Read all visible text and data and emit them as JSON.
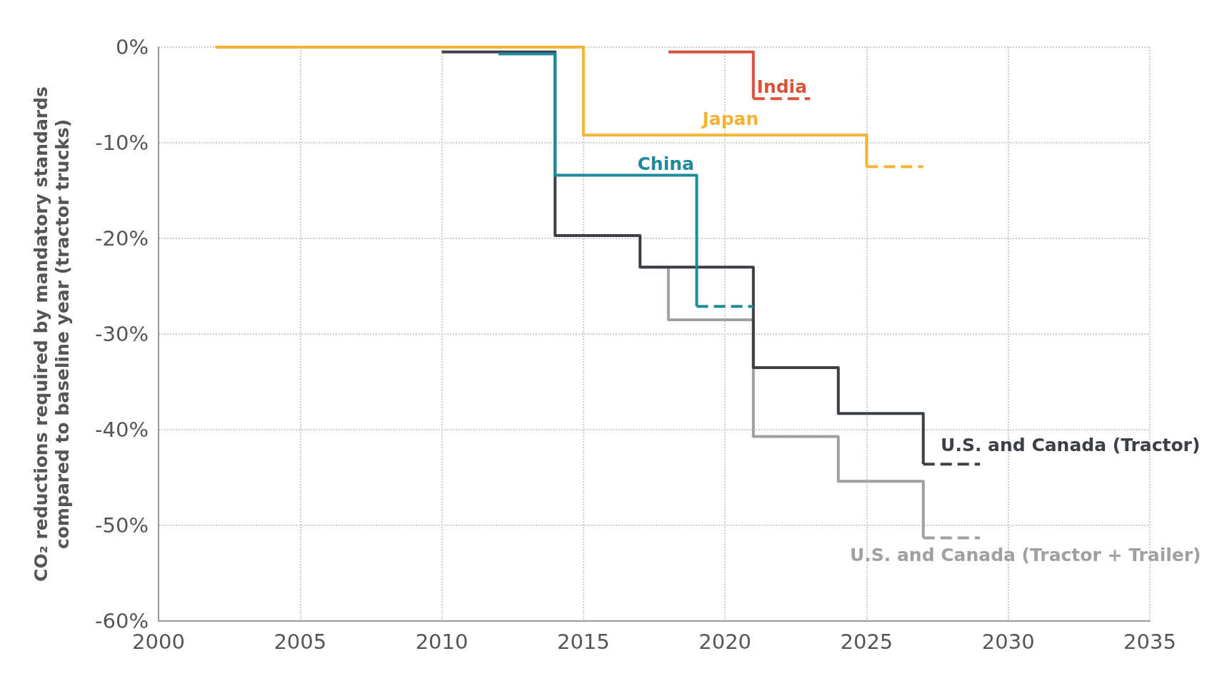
{
  "chart_data": {
    "type": "step",
    "ylabel": "CO₂ reductions required by mandatory standards\ncompared to baseline year (tractor trucks)",
    "xlim": [
      2000,
      2035
    ],
    "xticks": [
      2000,
      2005,
      2010,
      2015,
      2020,
      2025,
      2030,
      2035
    ],
    "ylim": [
      -60,
      0
    ],
    "yticks": [
      {
        "value": -60,
        "label": "-60%"
      },
      {
        "value": -50,
        "label": "-50%"
      },
      {
        "value": -40,
        "label": "-40%"
      },
      {
        "value": -30,
        "label": "-30%"
      },
      {
        "value": -20,
        "label": "-20%"
      },
      {
        "value": -10,
        "label": "-10%"
      },
      {
        "value": 0,
        "label": "0%"
      }
    ],
    "grid": true,
    "marker": "none",
    "series": [
      {
        "name": "U.S. and Canada (Tractor + Trailer)",
        "color": "#a0a0a0",
        "x": [
          2017,
          2018,
          2021,
          2024,
          2027
        ],
        "values": [
          -23,
          -28.5,
          -40.7,
          -45.4,
          -51.3
        ]
      },
      {
        "color": "#a0a0a0",
        "x": [
          2027,
          2029
        ],
        "values": [
          -51.3,
          -51.3
        ],
        "line_style": "dashed"
      },
      {
        "name": "U.S. and Canada (Tractor)",
        "color": "#3c4046",
        "x": [
          2010,
          2014,
          2017,
          2021,
          2024,
          2027
        ],
        "values": [
          -0.5,
          -19.7,
          -23,
          -33.5,
          -38.3,
          -43.6
        ]
      },
      {
        "color": "#3c4046",
        "x": [
          2027,
          2029
        ],
        "values": [
          -43.6,
          -43.6
        ],
        "line_style": "dashed"
      },
      {
        "name": "China",
        "color": "#1f8a9a",
        "x": [
          2012,
          2014,
          2019
        ],
        "values": [
          -0.7,
          -13.4,
          -27.1
        ]
      },
      {
        "color": "#1f8a9a",
        "x": [
          2019,
          2021
        ],
        "values": [
          -27.1,
          -27.1
        ],
        "line_style": "dashed"
      },
      {
        "name": "Japan",
        "color": "#f5b335",
        "x": [
          2002,
          2015,
          2025
        ],
        "values": [
          0,
          -9.2,
          -12.5
        ]
      },
      {
        "color": "#f5b335",
        "x": [
          2025,
          2027
        ],
        "values": [
          -12.5,
          -12.5
        ],
        "line_style": "dashed"
      },
      {
        "name": "India",
        "color": "#d9533a",
        "x": [
          2018,
          2021
        ],
        "values": [
          -0.5,
          -5.4
        ]
      },
      {
        "color": "#d9533a",
        "x": [
          2021,
          2023
        ],
        "values": [
          -5.4,
          -5.4
        ],
        "line_style": "dashed"
      }
    ]
  }
}
